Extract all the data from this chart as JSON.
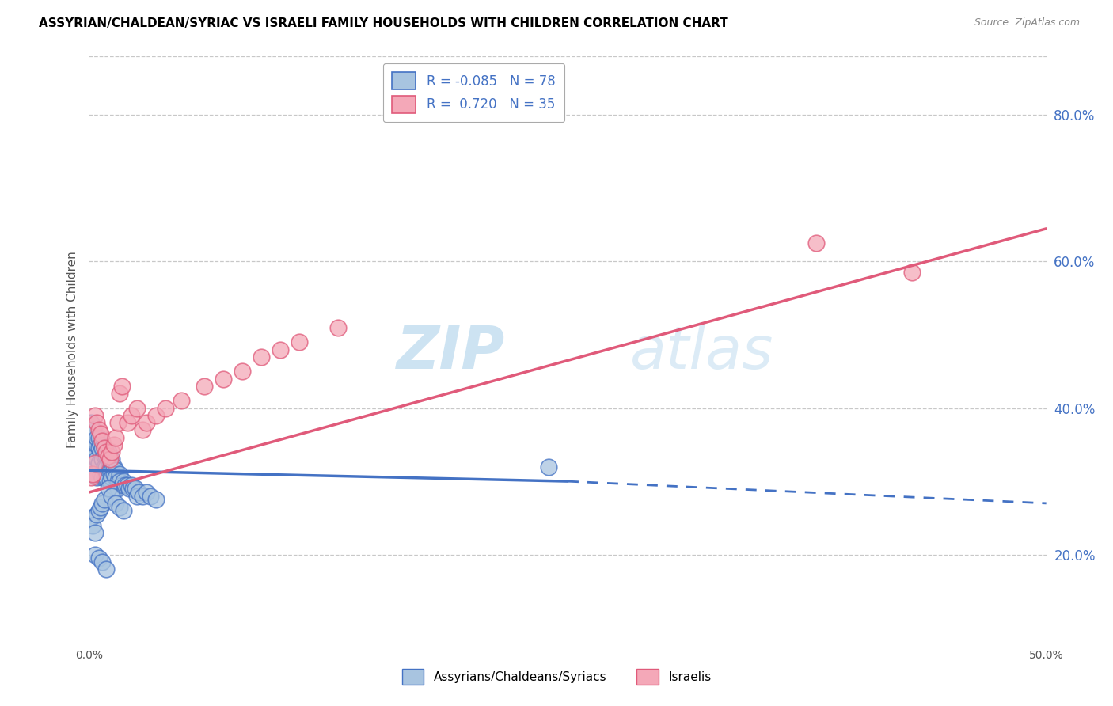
{
  "title": "ASSYRIAN/CHALDEAN/SYRIAC VS ISRAELI FAMILY HOUSEHOLDS WITH CHILDREN CORRELATION CHART",
  "source": "Source: ZipAtlas.com",
  "ylabel": "Family Households with Children",
  "xlim": [
    0.0,
    0.5
  ],
  "ylim": [
    0.08,
    0.88
  ],
  "yticks": [
    0.2,
    0.4,
    0.6,
    0.8
  ],
  "legend_R1": "-0.085",
  "legend_N1": "78",
  "legend_R2": "0.720",
  "legend_N2": "35",
  "color_blue": "#a8c4e0",
  "color_pink": "#f4a8b8",
  "line_blue": "#4472c4",
  "line_pink": "#e05a7a",
  "watermark_zip": "ZIP",
  "watermark_atlas": "atlas",
  "assyrians_x": [
    0.001,
    0.001,
    0.002,
    0.002,
    0.002,
    0.003,
    0.003,
    0.003,
    0.003,
    0.004,
    0.004,
    0.004,
    0.004,
    0.005,
    0.005,
    0.005,
    0.006,
    0.006,
    0.006,
    0.007,
    0.007,
    0.007,
    0.008,
    0.008,
    0.008,
    0.008,
    0.009,
    0.009,
    0.009,
    0.01,
    0.01,
    0.01,
    0.011,
    0.011,
    0.011,
    0.012,
    0.012,
    0.012,
    0.013,
    0.013,
    0.014,
    0.014,
    0.015,
    0.015,
    0.016,
    0.016,
    0.017,
    0.018,
    0.019,
    0.02,
    0.021,
    0.022,
    0.023,
    0.024,
    0.025,
    0.026,
    0.028,
    0.03,
    0.032,
    0.035,
    0.001,
    0.002,
    0.003,
    0.004,
    0.005,
    0.006,
    0.007,
    0.008,
    0.01,
    0.012,
    0.014,
    0.016,
    0.018,
    0.003,
    0.005,
    0.007,
    0.009,
    0.24
  ],
  "assyrians_y": [
    0.34,
    0.38,
    0.37,
    0.32,
    0.31,
    0.35,
    0.34,
    0.335,
    0.31,
    0.35,
    0.36,
    0.33,
    0.305,
    0.345,
    0.36,
    0.325,
    0.35,
    0.34,
    0.31,
    0.345,
    0.33,
    0.305,
    0.345,
    0.335,
    0.32,
    0.305,
    0.335,
    0.32,
    0.305,
    0.34,
    0.33,
    0.315,
    0.33,
    0.315,
    0.3,
    0.33,
    0.315,
    0.305,
    0.32,
    0.31,
    0.315,
    0.305,
    0.3,
    0.29,
    0.31,
    0.3,
    0.295,
    0.3,
    0.295,
    0.295,
    0.29,
    0.295,
    0.29,
    0.29,
    0.28,
    0.285,
    0.28,
    0.285,
    0.28,
    0.275,
    0.25,
    0.24,
    0.23,
    0.255,
    0.26,
    0.265,
    0.27,
    0.275,
    0.29,
    0.28,
    0.27,
    0.265,
    0.26,
    0.2,
    0.195,
    0.19,
    0.18,
    0.32
  ],
  "israelis_x": [
    0.001,
    0.002,
    0.003,
    0.003,
    0.004,
    0.005,
    0.006,
    0.007,
    0.008,
    0.009,
    0.01,
    0.011,
    0.012,
    0.013,
    0.014,
    0.015,
    0.016,
    0.017,
    0.02,
    0.022,
    0.025,
    0.028,
    0.03,
    0.035,
    0.04,
    0.048,
    0.06,
    0.07,
    0.08,
    0.09,
    0.1,
    0.11,
    0.13,
    0.38,
    0.43
  ],
  "israelis_y": [
    0.305,
    0.31,
    0.325,
    0.39,
    0.38,
    0.37,
    0.365,
    0.355,
    0.345,
    0.34,
    0.335,
    0.33,
    0.34,
    0.35,
    0.36,
    0.38,
    0.42,
    0.43,
    0.38,
    0.39,
    0.4,
    0.37,
    0.38,
    0.39,
    0.4,
    0.41,
    0.43,
    0.44,
    0.45,
    0.47,
    0.48,
    0.49,
    0.51,
    0.625,
    0.585
  ],
  "blue_line_x0": 0.0,
  "blue_line_x_solid_end": 0.25,
  "blue_line_x1": 0.5,
  "blue_line_y0": 0.315,
  "blue_line_y_solid_end": 0.3,
  "blue_line_y1": 0.27,
  "pink_line_x0": 0.0,
  "pink_line_x1": 0.5,
  "pink_line_y0": 0.285,
  "pink_line_y1": 0.645
}
